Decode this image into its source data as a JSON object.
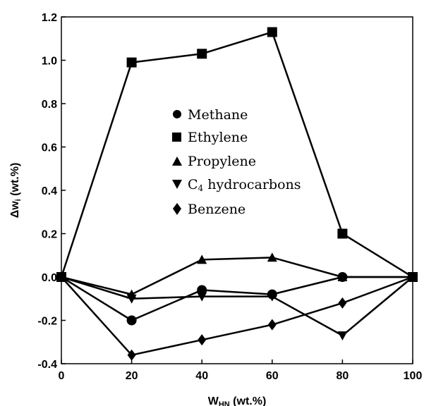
{
  "chart_data": {
    "type": "line",
    "x": [
      0,
      20,
      40,
      60,
      80,
      100
    ],
    "xlabel": {
      "main": "W",
      "sub": "HN",
      "rest": " (wt.%)"
    },
    "ylabel": {
      "main": "Δw",
      "sub": "i",
      "rest": " (wt.%)"
    },
    "xlim": [
      0,
      100
    ],
    "ylim": [
      -0.4,
      1.2
    ],
    "xticks": [
      0,
      20,
      40,
      60,
      80,
      100
    ],
    "yticks": [
      -0.4,
      -0.2,
      0.0,
      0.2,
      0.4,
      0.6,
      0.8,
      1.0,
      1.2
    ],
    "ytick_labels": [
      "-0.4",
      "-0.2",
      "0.0",
      "0.2",
      "0.4",
      "0.6",
      "0.8",
      "1.0",
      "1.2"
    ],
    "grid": false,
    "legend_position": "center",
    "series": [
      {
        "name": "Methane",
        "marker": "circle",
        "values": [
          0,
          -0.2,
          -0.06,
          -0.08,
          0.0,
          0
        ]
      },
      {
        "name": "Ethylene",
        "marker": "square",
        "values": [
          0,
          0.99,
          1.03,
          1.13,
          0.2,
          0
        ]
      },
      {
        "name": "Propylene",
        "marker": "triangle-up",
        "values": [
          0,
          -0.08,
          0.08,
          0.09,
          0.0,
          0
        ]
      },
      {
        "name": "C4 hydrocarbons",
        "name_parts": {
          "main": "C",
          "sub": "4",
          "rest": " hydrocarbons"
        },
        "marker": "triangle-down",
        "values": [
          0,
          -0.1,
          -0.09,
          -0.09,
          -0.27,
          0
        ]
      },
      {
        "name": "Benzene",
        "marker": "diamond",
        "values": [
          0,
          -0.36,
          -0.29,
          -0.22,
          -0.12,
          0
        ]
      }
    ],
    "color": "#000000"
  }
}
